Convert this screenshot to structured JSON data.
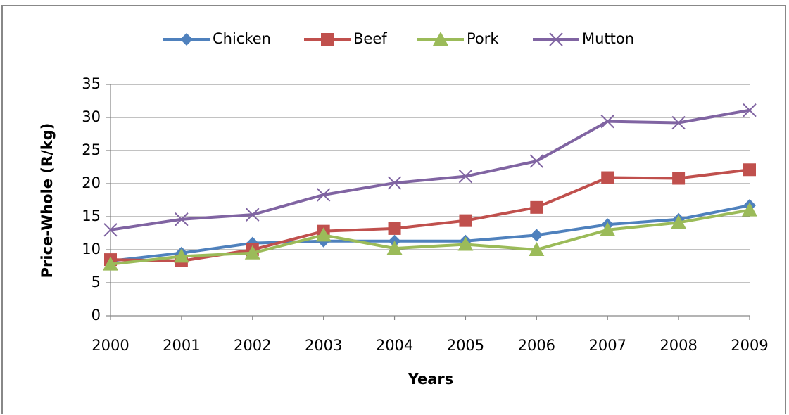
{
  "chart_data": {
    "type": "line",
    "y_label": "Price-Whole (R/kg)",
    "x_label": "Years",
    "categories": [
      "2000",
      "2001",
      "2002",
      "2003",
      "2004",
      "2005",
      "2006",
      "2007",
      "2008",
      "2009"
    ],
    "series": [
      {
        "name": "Chicken",
        "color": "#4f81bd",
        "marker": "diamond",
        "values": [
          8.3,
          9.5,
          11,
          11.3,
          11.3,
          11.3,
          12.2,
          13.8,
          14.6,
          16.7
        ]
      },
      {
        "name": "Beef",
        "color": "#c0504d",
        "marker": "square",
        "values": [
          8.5,
          8.3,
          10,
          12.8,
          13.2,
          14.4,
          16.4,
          20.9,
          20.8,
          22.1
        ]
      },
      {
        "name": "Pork",
        "color": "#9bbb59",
        "marker": "triangle",
        "values": [
          7.8,
          9,
          9.5,
          12.2,
          10.2,
          10.8,
          10,
          13,
          14.1,
          16
        ]
      },
      {
        "name": "Mutton",
        "color": "#8064a2",
        "marker": "x",
        "values": [
          13,
          14.6,
          15.3,
          18.3,
          20.1,
          21.1,
          23.4,
          29.4,
          29.2,
          31.1
        ]
      }
    ],
    "ylim": [
      0,
      35
    ],
    "yticks": [
      0,
      5,
      10,
      15,
      20,
      25,
      30,
      35
    ],
    "grid": true,
    "legend": "top"
  }
}
